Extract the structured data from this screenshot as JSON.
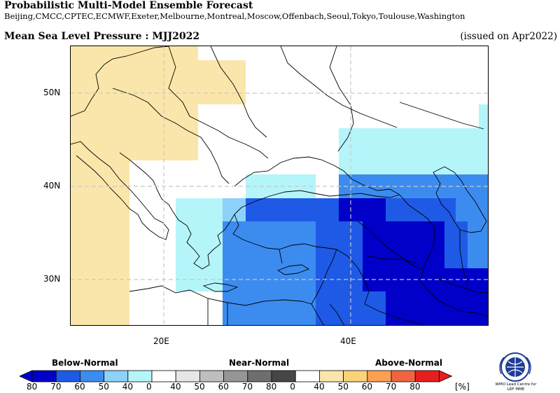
{
  "header": {
    "title": "Probabilistic Multi-Model Ensemble Forecast",
    "models": "Beijing,CMCC,CPTEC,ECMWF,Exeter,Melbourne,Montreal,Moscow,Offenbach,Seoul,Tokyo,Toulouse,Washington",
    "variable": "Mean Sea Level Pressure : MJJ2022",
    "issued": "(issued on Apr2022)"
  },
  "map": {
    "lon_range": [
      9,
      56
    ],
    "lat_range": [
      25,
      55
    ],
    "lat_labels": [
      "50N",
      "40N",
      "30N"
    ],
    "lon_labels": [
      "20E",
      "40E"
    ],
    "grid": "dashed"
  },
  "legend": {
    "categories": [
      "Below-Normal",
      "Near-Normal",
      "Above-Normal"
    ],
    "tick_labels": [
      "80",
      "70",
      "60",
      "50",
      "40",
      "0",
      "40",
      "50",
      "60",
      "70",
      "80",
      "0",
      "40",
      "50",
      "60",
      "70",
      "80"
    ],
    "unit": "[%]",
    "colors": {
      "below": [
        "#0000c8",
        "#1e5ae6",
        "#3c8cf0",
        "#8cd2fa",
        "#b4f5fa"
      ],
      "near": [
        "#e6e6e6",
        "#bebebe",
        "#969696",
        "#6e6e6e",
        "#464646"
      ],
      "above": [
        "#fae6aa",
        "#fad278",
        "#faa050",
        "#f06440",
        "#e61e1e"
      ]
    }
  },
  "logo": {
    "line1": "WMO Lead Centre for",
    "line2": "LRF MME"
  }
}
